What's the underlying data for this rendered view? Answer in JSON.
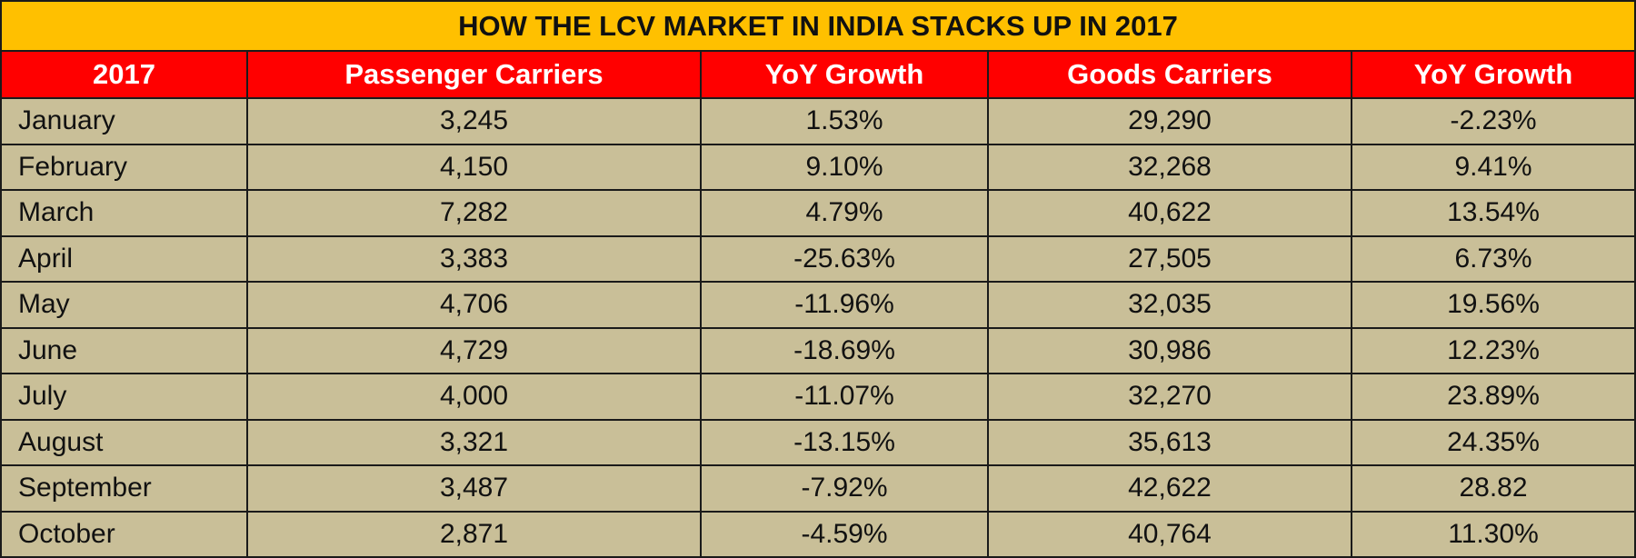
{
  "chart_data": {
    "type": "table",
    "title": "HOW THE LCV MARKET IN INDIA STACKS UP IN 2017",
    "columns": [
      "2017",
      "Passenger Carriers",
      "YoY Growth",
      "Goods Carriers",
      "YoY Growth"
    ],
    "rows": [
      [
        "January",
        "3,245",
        "1.53%",
        "29,290",
        "-2.23%"
      ],
      [
        "February",
        "4,150",
        "9.10%",
        "32,268",
        "9.41%"
      ],
      [
        "March",
        "7,282",
        "4.79%",
        "40,622",
        "13.54%"
      ],
      [
        "April",
        "3,383",
        "-25.63%",
        "27,505",
        "6.73%"
      ],
      [
        "May",
        "4,706",
        "-11.96%",
        "32,035",
        "19.56%"
      ],
      [
        "June",
        "4,729",
        "-18.69%",
        "30,986",
        "12.23%"
      ],
      [
        "July",
        "4,000",
        "-11.07%",
        "32,270",
        "23.89%"
      ],
      [
        "August",
        "3,321",
        "-13.15%",
        "35,613",
        "24.35%"
      ],
      [
        "September",
        "3,487",
        "-7.92%",
        "42,622",
        "28.82"
      ],
      [
        "October",
        "2,871",
        "-4.59%",
        "40,764",
        "11.30%"
      ]
    ],
    "colors": {
      "title_bg": "#FFC000",
      "header_bg": "#FF0000",
      "cell_bg": "#C9BF98"
    }
  }
}
